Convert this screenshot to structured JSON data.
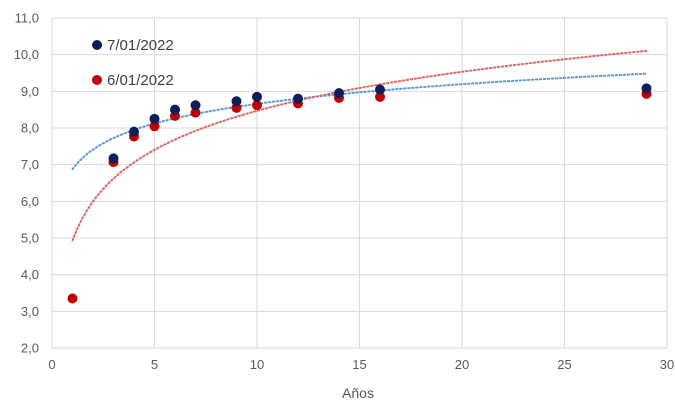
{
  "chart_data": {
    "type": "scatter",
    "title": "",
    "xlabel": "Años",
    "ylabel": "",
    "xlim": [
      0,
      30
    ],
    "ylim": [
      2,
      11
    ],
    "x_ticks": [
      0,
      5,
      10,
      15,
      20,
      25,
      30
    ],
    "x_tick_labels": [
      "0",
      "5",
      "10",
      "15",
      "20",
      "25",
      "30"
    ],
    "y_ticks": [
      2,
      3,
      4,
      5,
      6,
      7,
      8,
      9,
      10,
      11
    ],
    "y_tick_labels": [
      "2,0",
      "3,0",
      "4,0",
      "5,0",
      "6,0",
      "7,0",
      "8,0",
      "9,0",
      "10,0",
      "11,0"
    ],
    "grid": true,
    "legend_position": "top-left",
    "series": [
      {
        "name": "7/01/2022",
        "color": "#0D1F5A",
        "trendline_color": "#5B9BD5",
        "trendline": "logarithmic",
        "trendline_range": [
          1,
          29
        ],
        "points": [
          {
            "x": 3,
            "y": 7.17
          },
          {
            "x": 4,
            "y": 7.9
          },
          {
            "x": 5,
            "y": 8.25
          },
          {
            "x": 6,
            "y": 8.5
          },
          {
            "x": 7,
            "y": 8.62
          },
          {
            "x": 9,
            "y": 8.73
          },
          {
            "x": 10,
            "y": 8.85
          },
          {
            "x": 12,
            "y": 8.8
          },
          {
            "x": 14,
            "y": 8.95
          },
          {
            "x": 16,
            "y": 9.05
          },
          {
            "x": 29,
            "y": 9.08
          }
        ]
      },
      {
        "name": "6/01/2022",
        "color": "#C00000",
        "trendline_color": "#E06666",
        "trendline": "logarithmic",
        "trendline_range": [
          1,
          29
        ],
        "points": [
          {
            "x": 1,
            "y": 3.35
          },
          {
            "x": 3,
            "y": 7.07
          },
          {
            "x": 4,
            "y": 7.77
          },
          {
            "x": 5,
            "y": 8.05
          },
          {
            "x": 6,
            "y": 8.33
          },
          {
            "x": 7,
            "y": 8.42
          },
          {
            "x": 9,
            "y": 8.55
          },
          {
            "x": 10,
            "y": 8.62
          },
          {
            "x": 12,
            "y": 8.67
          },
          {
            "x": 14,
            "y": 8.82
          },
          {
            "x": 16,
            "y": 8.85
          },
          {
            "x": 29,
            "y": 8.93
          }
        ]
      }
    ]
  }
}
